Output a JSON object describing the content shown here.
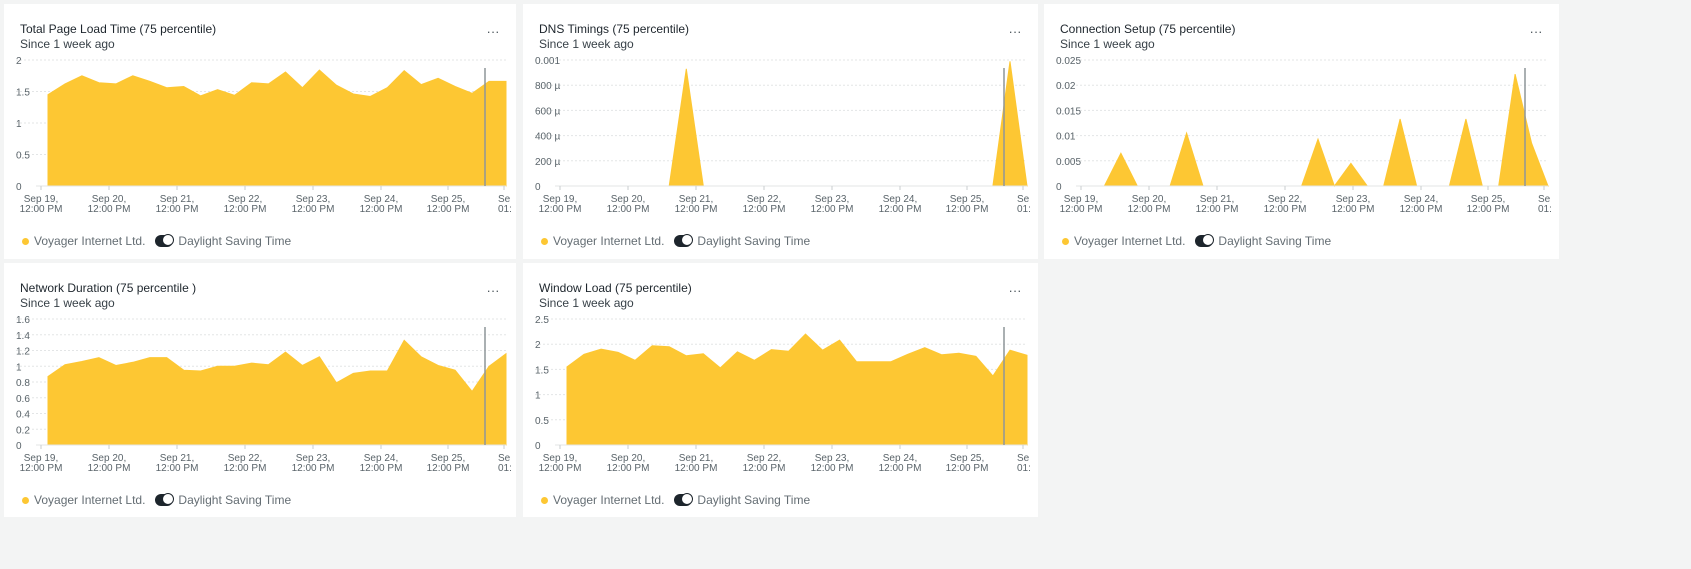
{
  "accent_color": "#fdc733",
  "x_axis_ticks": [
    [
      "Sep 19,",
      "12:00 PM"
    ],
    [
      "Sep 20,",
      "12:00 PM"
    ],
    [
      "Sep 21,",
      "12:00 PM"
    ],
    [
      "Sep 22,",
      "12:00 PM"
    ],
    [
      "Sep 23,",
      "12:00 PM"
    ],
    [
      "Sep 24,",
      "12:00 PM"
    ],
    [
      "Sep 25,",
      "12:00 PM"
    ],
    [
      "Se",
      "01:"
    ]
  ],
  "legend": {
    "series_label": "Voyager Internet Ltd.",
    "toggle_label": "Daylight Saving Time",
    "toggle_on": true
  },
  "menu_label": "···",
  "cards": [
    {
      "title": "Total Page Load Time (75 percentile)",
      "subtitle": "Since 1 week ago",
      "chart_data": {
        "type": "area",
        "series_name": "Voyager Internet Ltd.",
        "y_ticks": [
          "2",
          "1.5",
          "1",
          "0.5",
          "0"
        ],
        "ylim": [
          0,
          2
        ],
        "values": [
          1.45,
          1.62,
          1.75,
          1.64,
          1.62,
          1.75,
          1.66,
          1.56,
          1.58,
          1.43,
          1.53,
          1.44,
          1.64,
          1.62,
          1.81,
          1.56,
          1.84,
          1.6,
          1.46,
          1.42,
          1.56,
          1.83,
          1.61,
          1.71,
          1.58,
          1.47,
          1.66,
          1.66
        ]
      }
    },
    {
      "title": "DNS Timings (75 percentile)",
      "subtitle": "Since 1 week ago",
      "chart_data": {
        "type": "area",
        "series_name": "Voyager Internet Ltd.",
        "y_ticks": [
          "0.001",
          "800 µ",
          "600 µ",
          "400 µ",
          "200 µ",
          "0"
        ],
        "ylim": [
          0,
          0.001
        ],
        "values": [
          0,
          0,
          0,
          0,
          0,
          0,
          0,
          0.00093,
          0,
          0,
          0,
          0,
          0,
          0,
          0,
          0,
          0,
          0,
          0,
          0,
          0,
          0,
          0,
          0,
          0,
          0,
          0.00099,
          0
        ]
      }
    },
    {
      "title": "Connection Setup (75 percentile)",
      "subtitle": "Since 1 week ago",
      "chart_data": {
        "type": "area",
        "series_name": "Voyager Internet Ltd.",
        "y_ticks": [
          "0.025",
          "0.02",
          "0.015",
          "0.01",
          "0.005",
          "0"
        ],
        "ylim": [
          0,
          0.025
        ],
        "values": [
          0,
          0,
          0.0065,
          0,
          0,
          0,
          0.0105,
          0,
          0,
          0,
          0,
          0,
          0,
          0,
          0.0093,
          0,
          0.0045,
          0,
          0,
          0.0133,
          0,
          0,
          0,
          0.0133,
          0,
          0,
          0.0222,
          0.0085,
          0
        ]
      }
    },
    {
      "title": "Network Duration (75 percentile )",
      "subtitle": "Since 1 week ago",
      "chart_data": {
        "type": "area",
        "series_name": "Voyager Internet Ltd.",
        "y_ticks": [
          "1.6",
          "1.4",
          "1.2",
          "1",
          "0.8",
          "0.6",
          "0.4",
          "0.2",
          "0"
        ],
        "ylim": [
          0,
          1.6
        ],
        "values": [
          0.87,
          1.02,
          1.06,
          1.11,
          1.01,
          1.05,
          1.11,
          1.11,
          0.95,
          0.94,
          1.0,
          1.0,
          1.04,
          1.02,
          1.18,
          1.01,
          1.12,
          0.79,
          0.91,
          0.94,
          0.94,
          1.33,
          1.12,
          1.01,
          0.95,
          0.68,
          1.0,
          1.16
        ]
      }
    },
    {
      "title": "Window Load (75 percentile)",
      "subtitle": "Since 1 week ago",
      "chart_data": {
        "type": "area",
        "series_name": "Voyager Internet Ltd.",
        "y_ticks": [
          "2.5",
          "2",
          "1.5",
          "1",
          "0.5",
          "0"
        ],
        "ylim": [
          0,
          2.5
        ],
        "values": [
          1.55,
          1.8,
          1.9,
          1.84,
          1.68,
          1.97,
          1.95,
          1.77,
          1.81,
          1.53,
          1.85,
          1.68,
          1.89,
          1.86,
          2.2,
          1.88,
          2.08,
          1.65,
          1.65,
          1.65,
          1.8,
          1.93,
          1.79,
          1.82,
          1.76,
          1.37,
          1.88,
          1.78
        ]
      }
    }
  ]
}
